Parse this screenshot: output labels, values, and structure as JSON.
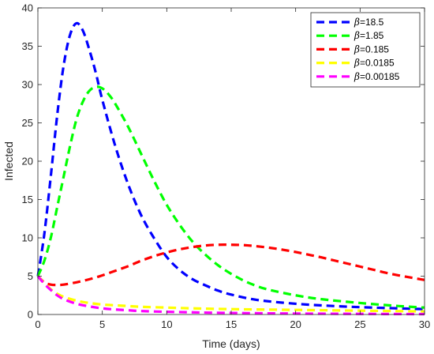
{
  "chart_data": {
    "type": "line",
    "title": "",
    "xlabel": "Time (days)",
    "ylabel": "Infected",
    "xlim": [
      0,
      30
    ],
    "ylim": [
      0,
      40
    ],
    "xticks": [
      0,
      5,
      10,
      15,
      20,
      25,
      30
    ],
    "yticks": [
      0,
      5,
      10,
      15,
      20,
      25,
      30,
      35,
      40
    ],
    "grid": false,
    "legend_position": "top-right",
    "legend_symbol": "β",
    "series": [
      {
        "name": "=18.5",
        "color": "#0000ff",
        "x": [
          0,
          0.5,
          1,
          1.5,
          2,
          2.5,
          3,
          3.5,
          4,
          4.5,
          5,
          6,
          7,
          8,
          9,
          10,
          11,
          12,
          13,
          14,
          15,
          17,
          20,
          23,
          26,
          30
        ],
        "y": [
          5,
          10.5,
          18,
          26,
          32.5,
          36.5,
          38,
          37,
          34.5,
          31.5,
          28,
          22,
          17,
          13,
          10,
          7.5,
          5.8,
          4.6,
          3.8,
          3.1,
          2.6,
          1.9,
          1.4,
          1.1,
          0.9,
          0.7
        ]
      },
      {
        "name": "=1.85",
        "color": "#00ff00",
        "x": [
          0,
          0.5,
          1,
          1.5,
          2,
          2.5,
          3,
          3.5,
          4,
          4.5,
          5,
          5.5,
          6,
          7,
          8,
          9,
          10,
          11,
          12,
          13,
          14,
          15,
          16,
          17,
          18,
          20,
          22,
          25,
          28,
          30
        ],
        "y": [
          5,
          7,
          10,
          14,
          18,
          22,
          25.5,
          27.8,
          29.2,
          29.7,
          29.5,
          28.7,
          27.5,
          24.5,
          21,
          17.5,
          14.3,
          11.7,
          9.5,
          7.8,
          6.4,
          5.3,
          4.4,
          3.7,
          3.2,
          2.5,
          2,
          1.5,
          1.1,
          0.9
        ]
      },
      {
        "name": "=0.185",
        "color": "#ff0000",
        "x": [
          0,
          0.5,
          1,
          1.5,
          2,
          3,
          4,
          5,
          6,
          7,
          8,
          9,
          10,
          11,
          12,
          13,
          14,
          15,
          16,
          17,
          18,
          19,
          20,
          21,
          22,
          23,
          24,
          25,
          26,
          27,
          28,
          29,
          30
        ],
        "y": [
          5,
          4.2,
          3.9,
          3.85,
          3.9,
          4.2,
          4.6,
          5.1,
          5.7,
          6.3,
          7,
          7.6,
          8.1,
          8.5,
          8.8,
          9,
          9.1,
          9.1,
          9.05,
          8.9,
          8.7,
          8.45,
          8.15,
          7.8,
          7.45,
          7.05,
          6.65,
          6.25,
          5.85,
          5.45,
          5.1,
          4.8,
          4.5
        ]
      },
      {
        "name": "=0.0185",
        "color": "#ffff00",
        "x": [
          0,
          0.5,
          1,
          1.5,
          2,
          3,
          4,
          5,
          6,
          7,
          8,
          10,
          12,
          15,
          20,
          25,
          30
        ],
        "y": [
          5,
          4.1,
          3.3,
          2.7,
          2.3,
          1.8,
          1.5,
          1.3,
          1.2,
          1.1,
          1.0,
          0.9,
          0.8,
          0.7,
          0.6,
          0.5,
          0.4
        ]
      },
      {
        "name": "=0.00185",
        "color": "#ff00ff",
        "x": [
          0,
          0.5,
          1,
          1.5,
          2,
          3,
          4,
          5,
          6,
          7,
          8,
          10,
          12,
          15,
          20,
          25,
          30
        ],
        "y": [
          5,
          4.0,
          3.2,
          2.5,
          2.0,
          1.4,
          1.05,
          0.8,
          0.65,
          0.55,
          0.45,
          0.35,
          0.28,
          0.2,
          0.12,
          0.08,
          0.05
        ]
      }
    ]
  }
}
